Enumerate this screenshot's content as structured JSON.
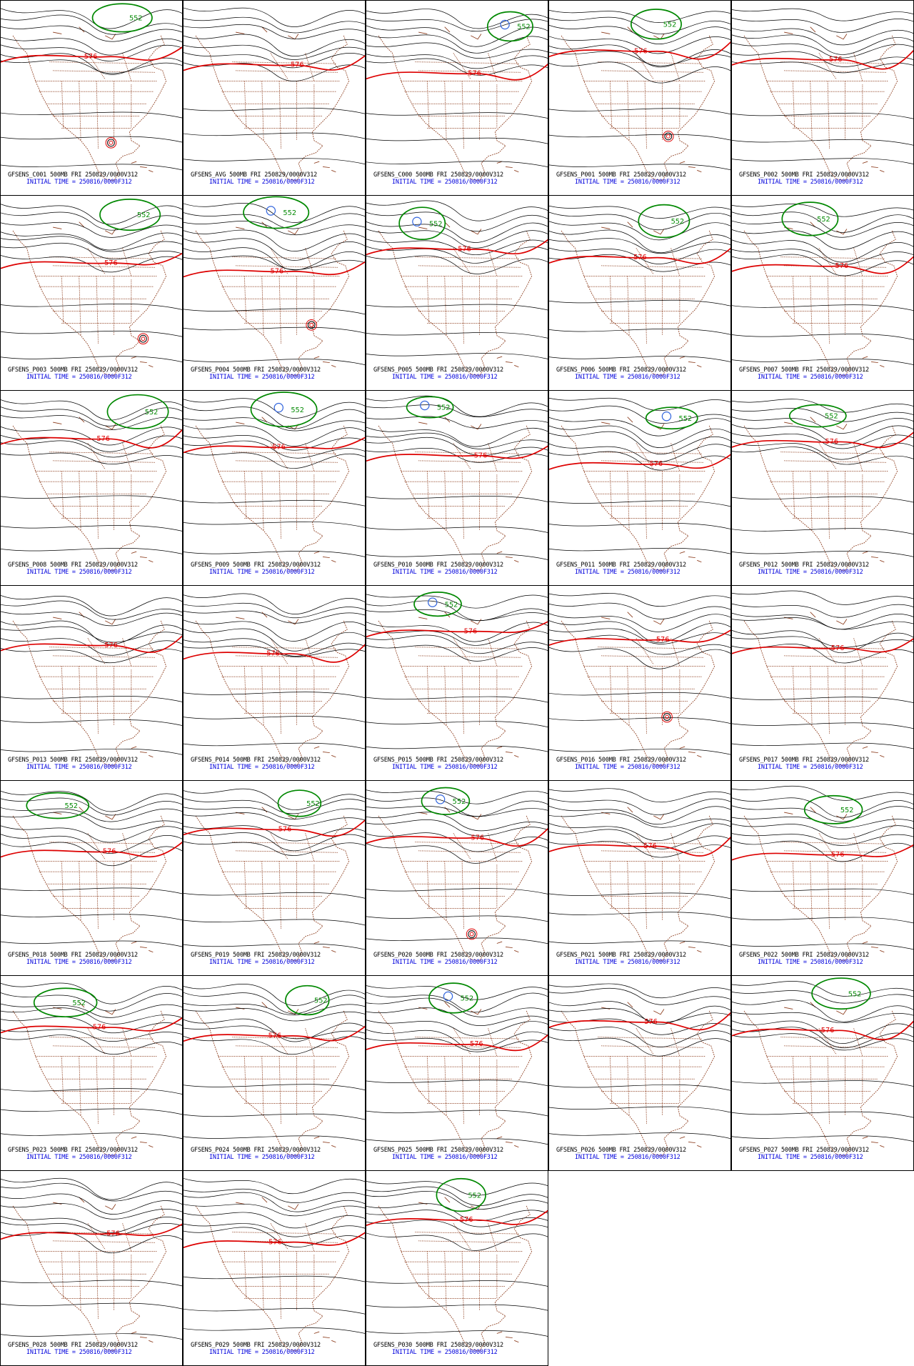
{
  "figure": {
    "valid_date_label": "FRI 250829/0000V312",
    "level": "500MB",
    "initial_time_text": "INITIAL TIME = 250816/0000F312",
    "colors": {
      "contour": "#000000",
      "contour_576": "#dd0000",
      "contour_552": "#008800",
      "contour_low": "#3366dd",
      "geography": "#8b3a1a",
      "caption_line2": "#0000dd"
    }
  },
  "panels": [
    {
      "id": "C001",
      "caption": "GFSENS_C001 500MB FRI 250829/0000V312",
      "labels": [
        "552",
        "576"
      ],
      "tropical_low": true
    },
    {
      "id": "AVG",
      "caption": "GFSENS_AVG 500MB FRI 250829/0000V312",
      "labels": [
        "576"
      ],
      "tropical_low": false
    },
    {
      "id": "C000",
      "caption": "GFSENS_C000 500MB FRI 250829/0000V312",
      "labels": [
        "552",
        "576"
      ],
      "tropical_low": false
    },
    {
      "id": "P001",
      "caption": "GFSENS_P001 500MB FRI 250829/0000V312",
      "labels": [
        "552",
        "576"
      ],
      "tropical_low": true
    },
    {
      "id": "P002",
      "caption": "GFSENS_P002 500MB FRI 250829/0000V312",
      "labels": [
        "576"
      ],
      "tropical_low": false
    },
    {
      "id": "P003",
      "caption": "GFSENS_P003 500MB FRI 250829/0000V312",
      "labels": [
        "552",
        "576"
      ],
      "tropical_low": true
    },
    {
      "id": "P004",
      "caption": "GFSENS_P004 500MB FRI 250829/0000V312",
      "labels": [
        "552",
        "576"
      ],
      "tropical_low": true
    },
    {
      "id": "P005",
      "caption": "GFSENS_P005 500MB FRI 250829/0000V312",
      "labels": [
        "552",
        "576"
      ],
      "tropical_low": false
    },
    {
      "id": "P006",
      "caption": "GFSENS_P006 500MB FRI 250829/0000V312",
      "labels": [
        "552",
        "576"
      ],
      "tropical_low": false
    },
    {
      "id": "P007",
      "caption": "GFSENS_P007 500MB FRI 250829/0000V312",
      "labels": [
        "552",
        "576"
      ],
      "tropical_low": false
    },
    {
      "id": "P008",
      "caption": "GFSENS_P008 500MB FRI 250829/0000V312",
      "labels": [
        "552",
        "576"
      ],
      "tropical_low": false
    },
    {
      "id": "P009",
      "caption": "GFSENS_P009 500MB FRI 250829/0000V312",
      "labels": [
        "552",
        "576"
      ],
      "tropical_low": false
    },
    {
      "id": "P010",
      "caption": "GFSENS_P010 500MB FRI 250829/0000V312",
      "labels": [
        "552",
        "576"
      ],
      "tropical_low": false
    },
    {
      "id": "P011",
      "caption": "GFSENS_P011 500MB FRI 250829/0000V312",
      "labels": [
        "552",
        "576"
      ],
      "tropical_low": false
    },
    {
      "id": "P012",
      "caption": "GFSENS_P012 500MB FRI 250829/0000V312",
      "labels": [
        "552",
        "576"
      ],
      "tropical_low": false
    },
    {
      "id": "P013",
      "caption": "GFSENS_P013 500MB FRI 250829/0000V312",
      "labels": [
        "576"
      ],
      "tropical_low": false
    },
    {
      "id": "P014",
      "caption": "GFSENS_P014 500MB FRI 250829/0000V312",
      "labels": [
        "576"
      ],
      "tropical_low": false
    },
    {
      "id": "P015",
      "caption": "GFSENS_P015 500MB FRI 250829/0000V312",
      "labels": [
        "552",
        "576"
      ],
      "tropical_low": false
    },
    {
      "id": "P016",
      "caption": "GFSENS_P016 500MB FRI 250829/0000V312",
      "labels": [
        "576"
      ],
      "tropical_low": true
    },
    {
      "id": "P017",
      "caption": "GFSENS_P017 500MB FRI 250829/0000V312",
      "labels": [
        "576"
      ],
      "tropical_low": false
    },
    {
      "id": "P018",
      "caption": "GFSENS_P018 500MB FRI 250829/0000V312",
      "labels": [
        "552",
        "576"
      ],
      "tropical_low": false
    },
    {
      "id": "P019",
      "caption": "GFSENS_P019 500MB FRI 250829/0000V312",
      "labels": [
        "552",
        "576"
      ],
      "tropical_low": false
    },
    {
      "id": "P020",
      "caption": "GFSENS_P020 500MB FRI 250829/0000V312",
      "labels": [
        "552",
        "576"
      ],
      "tropical_low": true
    },
    {
      "id": "P021",
      "caption": "GFSENS_P021 500MB FRI 250829/0000V312",
      "labels": [
        "576"
      ],
      "tropical_low": false
    },
    {
      "id": "P022",
      "caption": "GFSENS_P022 500MB FRI 250829/0000V312",
      "labels": [
        "552",
        "576"
      ],
      "tropical_low": false
    },
    {
      "id": "P023",
      "caption": "GFSENS_P023 500MB FRI 250829/0000V312",
      "labels": [
        "552",
        "576"
      ],
      "tropical_low": false
    },
    {
      "id": "P024",
      "caption": "GFSENS_P024 500MB FRI 250829/0000V312",
      "labels": [
        "552",
        "576"
      ],
      "tropical_low": false
    },
    {
      "id": "P025",
      "caption": "GFSENS_P025 500MB FRI 250829/0000V312",
      "labels": [
        "552",
        "576"
      ],
      "tropical_low": false
    },
    {
      "id": "P026",
      "caption": "GFSENS_P026 500MB FRI 250829/0000V312",
      "labels": [
        "576"
      ],
      "tropical_low": false
    },
    {
      "id": "P027",
      "caption": "GFSENS_P027 500MB FRI 250829/0000V312",
      "labels": [
        "552",
        "576"
      ],
      "tropical_low": false
    },
    {
      "id": "P028",
      "caption": "GFSENS_P028 500MB FRI 250829/0000V312",
      "labels": [
        "576"
      ],
      "tropical_low": false
    },
    {
      "id": "P029",
      "caption": "GFSENS_P029 500MB FRI 250829/0000V312",
      "labels": [
        "576"
      ],
      "tropical_low": false
    },
    {
      "id": "P030",
      "caption": "GFSENS_P030 500MB FRI 250829/0000V312",
      "labels": [
        "552",
        "576"
      ],
      "tropical_low": false
    }
  ]
}
